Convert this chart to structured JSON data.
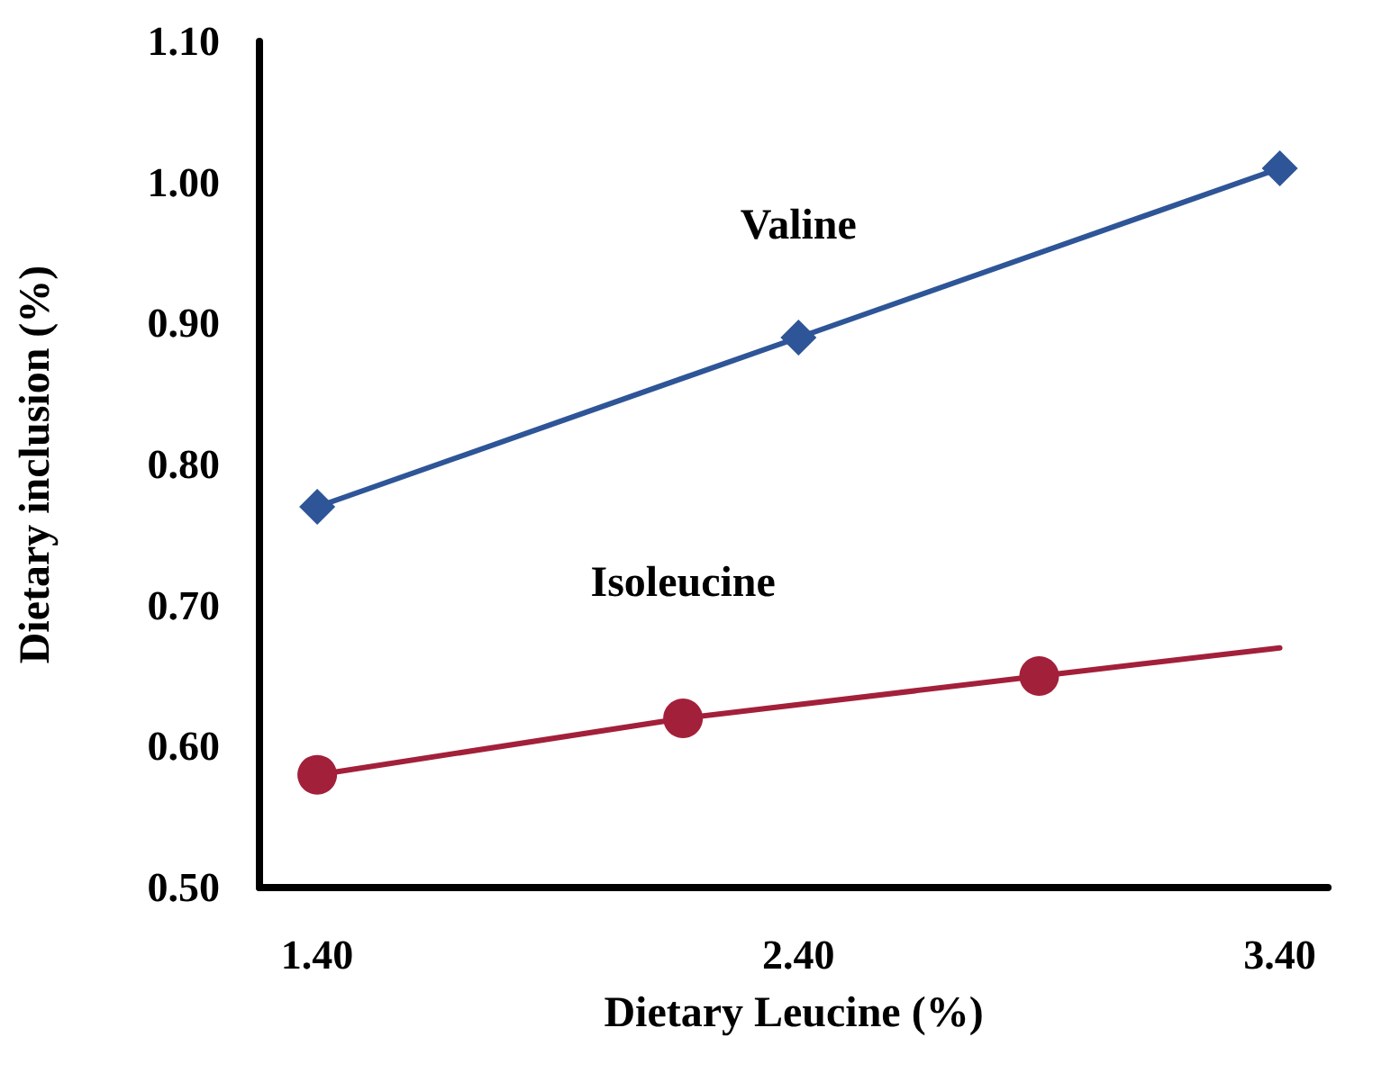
{
  "chart_data": {
    "type": "line",
    "xlabel": "Dietary Leucine (%)",
    "ylabel": "Dietary inclusion (%)",
    "xlim": [
      1.28,
      3.5
    ],
    "xticks": [
      {
        "value": 1.4,
        "label": "1.40"
      },
      {
        "value": 2.4,
        "label": "2.40"
      },
      {
        "value": 3.4,
        "label": "3.40"
      }
    ],
    "ylim": [
      0.5,
      1.1
    ],
    "yticks": [
      {
        "value": 0.5,
        "label": "0.50"
      },
      {
        "value": 0.6,
        "label": "0.60"
      },
      {
        "value": 0.7,
        "label": "0.70"
      },
      {
        "value": 0.8,
        "label": "0.80"
      },
      {
        "value": 0.9,
        "label": "0.90"
      },
      {
        "value": 1.0,
        "label": "1.00"
      },
      {
        "value": 1.1,
        "label": "1.10"
      }
    ],
    "grid": false,
    "legend": false,
    "series": [
      {
        "name": "Valine",
        "color": "#2e5597",
        "marker": "diamond",
        "x": [
          1.4,
          2.4,
          3.4
        ],
        "values": [
          0.77,
          0.89,
          1.01
        ]
      },
      {
        "name": "Isoleucine",
        "color": "#a3203a",
        "marker": "circle",
        "x": [
          1.4,
          2.16,
          2.9,
          3.4
        ],
        "values": [
          0.58,
          0.62,
          0.65,
          0.67
        ]
      }
    ]
  }
}
